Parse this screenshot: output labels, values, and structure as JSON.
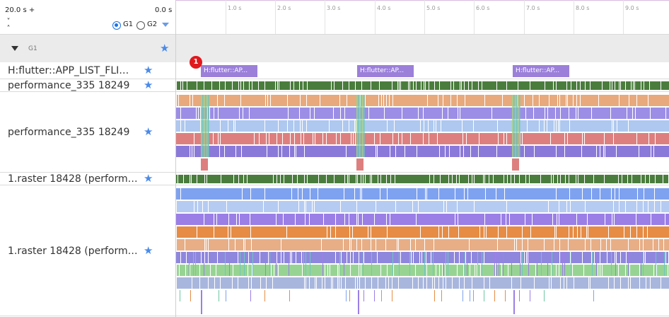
{
  "toolbar": {
    "time_start": "20.0 s +",
    "time_end": "0.0 s",
    "collapse_up": "˅",
    "collapse_down": "˄",
    "group_options": [
      "G1",
      "G2"
    ],
    "selected_group": "G1"
  },
  "ruler": {
    "ticks": [
      "1.0 s",
      "2.0 s",
      "3.0 s",
      "4.0 s",
      "5.0 s",
      "6.0 s",
      "7.0 s",
      "8.0 s",
      "9.0 s"
    ]
  },
  "group": {
    "label": "G1",
    "expanded": true,
    "starred": true
  },
  "tracks": [
    {
      "label": "H:flutter::APP_LIST_FLI…",
      "starred": true,
      "slices": [
        "H:flutter::AP...",
        "H:flutter::AP...",
        "H:flutter::AP..."
      ],
      "marker": "1"
    },
    {
      "label": "performance_335 18249",
      "starred": true
    },
    {
      "label": "performance_335 18249",
      "starred": true
    },
    {
      "label": "1.raster 18428 (perform…",
      "starred": true
    },
    {
      "label": "1.raster 18428 (perform…",
      "starred": true
    }
  ],
  "colors": {
    "accent": "#1a73e8",
    "star": "#4a8ae8",
    "slice": "#9b7fd9",
    "marker": "#e0181e",
    "summary_green": "#4a7d3d"
  },
  "icons": {
    "expand": "triangle-down-icon",
    "star": "star-icon",
    "dropdown": "chevron-down-icon"
  }
}
